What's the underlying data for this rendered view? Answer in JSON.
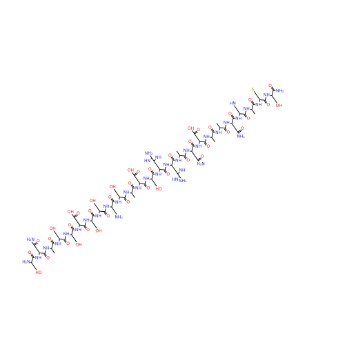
{
  "residues": [
    {
      "n": "H₂N",
      "o": "O",
      "side": [
        "HO"
      ]
    },
    {
      "n": "NH",
      "o": "O",
      "side": [
        "O",
        "H₂N"
      ]
    },
    {
      "n": "NH",
      "o": "O"
    },
    {
      "n": "NH",
      "o": "O",
      "side": [
        "OH"
      ]
    },
    {
      "n": "NH",
      "o": "O",
      "side": [
        "OH"
      ]
    },
    {
      "n": "NH",
      "o": "O",
      "side": [
        "O",
        "OH"
      ]
    },
    {
      "n": "NH",
      "o": "O",
      "side": [
        "OH"
      ]
    },
    {
      "n": "NH",
      "o": "O",
      "side": [
        "OH"
      ]
    },
    {
      "n": "NH",
      "o": "O",
      "side": [
        "NH₂"
      ]
    },
    {
      "n": "NH",
      "o": "O",
      "side": [
        "OH"
      ]
    },
    {
      "n": "NH",
      "o": "O"
    },
    {
      "n": "NH",
      "o": "O",
      "side": [
        "O",
        "OH"
      ]
    },
    {
      "n": "NH",
      "o": "O",
      "side": [
        "HO"
      ]
    },
    {
      "n": "NH",
      "o": "O",
      "side": [
        "NH",
        "HN",
        "NH₂"
      ]
    },
    {
      "n": "NH",
      "o": "O",
      "side": [
        "NH",
        "HN",
        "NH₂"
      ]
    },
    {
      "n": "NH",
      "o": "O"
    },
    {
      "n": "NH",
      "o": "O",
      "side": [
        "O",
        "H₂N"
      ]
    },
    {
      "n": "NH",
      "o": "O",
      "side": [
        "O",
        "OH"
      ]
    },
    {
      "n": "NH",
      "o": "O"
    },
    {
      "n": "NH",
      "o": "O"
    },
    {
      "n": "NH",
      "o": "O",
      "side": [
        "O",
        "NH₂"
      ]
    },
    {
      "n": "NH",
      "o": "O",
      "side": [
        "HN"
      ]
    },
    {
      "n": "NH",
      "o": "O"
    },
    {
      "n": "NH",
      "o": "O",
      "side": [
        "S"
      ]
    },
    {
      "n": "NH",
      "o": "O",
      "side": [
        "OH"
      ]
    }
  ],
  "c_terminus": "NH₂"
}
